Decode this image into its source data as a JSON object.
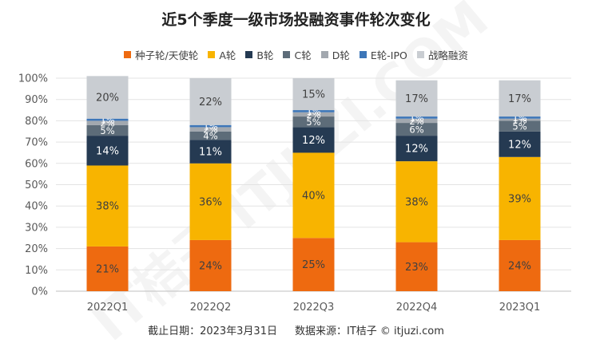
{
  "colors": {
    "seed_angel": "#EE6A10",
    "a": "#F8B400",
    "b": "#253A52",
    "c": "#5D6C79",
    "d": "#A2A8AF",
    "e_ipo": "#3D76B8",
    "strategic": "#C9CDD2"
  },
  "footer": {
    "date": "截止日期：2023年3月31日",
    "source": "数据来源：IT桔子 © itjuzi.com"
  },
  "watermark": "IT桔子 ITJUZI.COM",
  "chart_data": {
    "type": "bar",
    "stacked": true,
    "percent": true,
    "title": "近5个季度一级市场投融资事件轮次变化",
    "categories": [
      "2022Q1",
      "2022Q2",
      "2022Q3",
      "2022Q4",
      "2023Q1"
    ],
    "ylim": [
      0,
      100
    ],
    "yticks": [
      "0%",
      "10%",
      "20%",
      "30%",
      "40%",
      "50%",
      "60%",
      "70%",
      "80%",
      "90%",
      "100%"
    ],
    "legend_position": "top",
    "series": [
      {
        "name": "种子轮/天使轮",
        "key": "seed_angel",
        "values": [
          21,
          24,
          25,
          23,
          24
        ],
        "labels": [
          "21%",
          "24%",
          "25%",
          "23%",
          "24%"
        ],
        "label_color": "#404040"
      },
      {
        "name": "A轮",
        "key": "a",
        "values": [
          38,
          36,
          40,
          38,
          39
        ],
        "labels": [
          "38%",
          "36%",
          "40%",
          "38%",
          "39%"
        ],
        "label_color": "#404040"
      },
      {
        "name": "B轮",
        "key": "b",
        "values": [
          14,
          11,
          12,
          12,
          12
        ],
        "labels": [
          "14%",
          "11%",
          "12%",
          "12%",
          "12%"
        ],
        "label_color": "#ffffff"
      },
      {
        "name": "C轮",
        "key": "c",
        "values": [
          5,
          4,
          5,
          6,
          5
        ],
        "labels": [
          "5%",
          "4%",
          "5%",
          "6%",
          "5%"
        ],
        "label_color": "#ffffff"
      },
      {
        "name": "D轮",
        "key": "d",
        "values": [
          2,
          2,
          2,
          2,
          1
        ],
        "labels": [
          "2%",
          "2%",
          "2%",
          "2%",
          "1%"
        ],
        "label_color": "#ffffff"
      },
      {
        "name": "E轮-IPO",
        "key": "e_ipo",
        "values": [
          1,
          1,
          1,
          1,
          1
        ],
        "labels": [
          "1%",
          "1%",
          "1%",
          "1%",
          "1%"
        ],
        "label_color": "#ffffff"
      },
      {
        "name": "战略融资",
        "key": "strategic",
        "values": [
          20,
          22,
          15,
          17,
          17
        ],
        "labels": [
          "20%",
          "22%",
          "15%",
          "17%",
          "17%"
        ],
        "label_color": "#404040"
      }
    ]
  }
}
